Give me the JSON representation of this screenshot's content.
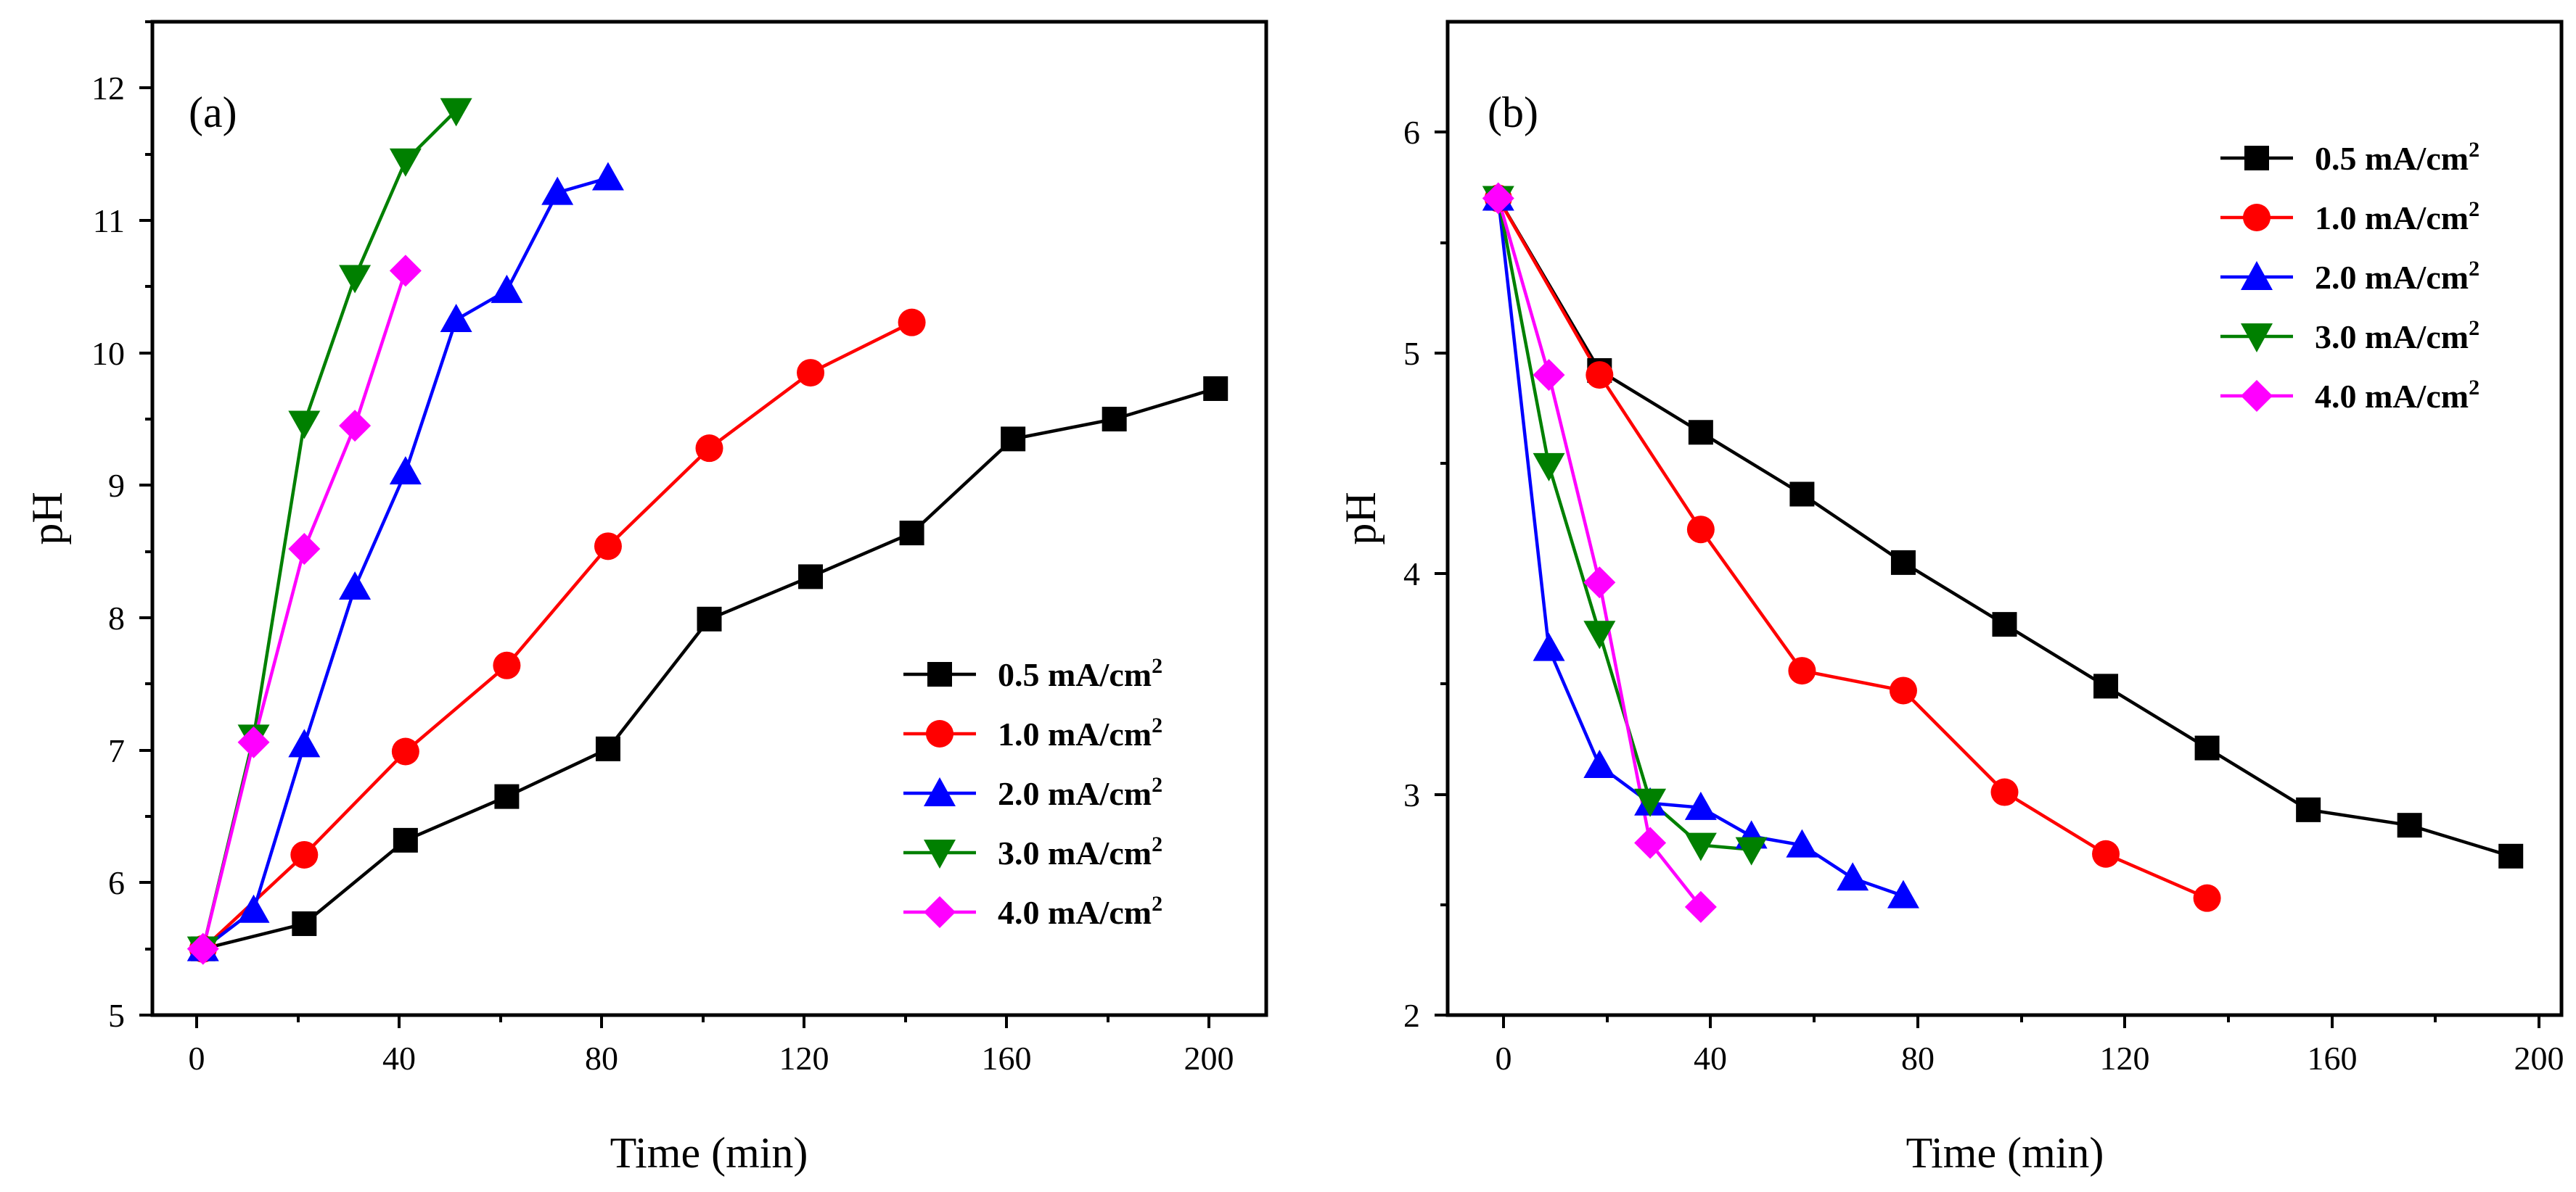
{
  "chart_data": [
    {
      "type": "line",
      "panel_label": "(a)",
      "xlabel": "Time (min)",
      "ylabel": "pH",
      "xlim": [
        -10,
        210
      ],
      "ylim": [
        5,
        12.5
      ],
      "xticks": [
        0,
        40,
        80,
        120,
        160,
        200
      ],
      "xtick_labels": [
        "0",
        "40",
        "80",
        "120",
        "160",
        "200"
      ],
      "yticks": [
        5,
        6,
        7,
        8,
        9,
        10,
        11,
        12
      ],
      "ytick_labels": [
        "5",
        "6",
        "7",
        "8",
        "9",
        "10",
        "11",
        "12"
      ],
      "legend_position": "bottom-right",
      "series": [
        {
          "name": "0.5 mA/cm",
          "sup": "2",
          "color": "#000000",
          "marker": "square",
          "x": [
            0,
            20,
            40,
            60,
            80,
            100,
            120,
            140,
            160,
            180,
            200
          ],
          "y": [
            5.5,
            5.69,
            6.32,
            6.65,
            7.01,
            7.99,
            8.31,
            8.64,
            9.35,
            9.5,
            9.73
          ]
        },
        {
          "name": "1.0 mA/cm",
          "sup": "2",
          "color": "#ff0000",
          "marker": "circle",
          "x": [
            0,
            20,
            40,
            60,
            80,
            100,
            120,
            140
          ],
          "y": [
            5.5,
            6.21,
            6.99,
            7.64,
            8.54,
            9.28,
            9.85,
            10.23
          ]
        },
        {
          "name": "2.0 mA/cm",
          "sup": "2",
          "color": "#0000ff",
          "marker": "triangle-up",
          "x": [
            0,
            10,
            20,
            30,
            40,
            50,
            60,
            70,
            80
          ],
          "y": [
            5.5,
            5.79,
            7.04,
            8.23,
            9.1,
            10.25,
            10.47,
            11.21,
            11.32
          ]
        },
        {
          "name": "3.0 mA/cm",
          "sup": "2",
          "color": "#008000",
          "marker": "triangle-down",
          "x": [
            0,
            10,
            20,
            30,
            40,
            50
          ],
          "y": [
            5.5,
            7.1,
            9.47,
            10.57,
            11.45,
            11.83
          ]
        },
        {
          "name": "4.0 mA/cm",
          "sup": "2",
          "color": "#ff00ff",
          "marker": "diamond",
          "x": [
            0,
            10,
            20,
            30,
            40
          ],
          "y": [
            5.5,
            7.06,
            8.52,
            9.45,
            10.62
          ]
        }
      ]
    },
    {
      "type": "line",
      "panel_label": "(b)",
      "xlabel": "Time (min)",
      "ylabel": "pH",
      "xlim": [
        -10,
        210
      ],
      "ylim": [
        2,
        6.5
      ],
      "xticks": [
        0,
        40,
        80,
        120,
        160,
        200
      ],
      "xtick_labels": [
        "0",
        "40",
        "80",
        "120",
        "160",
        "200"
      ],
      "yticks": [
        2,
        3,
        4,
        5,
        6
      ],
      "ytick_labels": [
        "2",
        "3",
        "4",
        "5",
        "6"
      ],
      "legend_position": "top-right",
      "series": [
        {
          "name": "0.5 mA/cm",
          "sup": "2",
          "color": "#000000",
          "marker": "square",
          "x": [
            0,
            20,
            40,
            60,
            80,
            100,
            120,
            140,
            160,
            180,
            200
          ],
          "y": [
            5.7,
            4.92,
            4.64,
            4.36,
            4.05,
            3.77,
            3.49,
            3.21,
            2.93,
            2.86,
            2.72
          ]
        },
        {
          "name": "1.0 mA/cm",
          "sup": "2",
          "color": "#ff0000",
          "marker": "circle",
          "x": [
            0,
            20,
            40,
            60,
            80,
            100,
            120,
            140
          ],
          "y": [
            5.7,
            4.9,
            4.2,
            3.56,
            3.47,
            3.01,
            2.73,
            2.53
          ]
        },
        {
          "name": "2.0 mA/cm",
          "sup": "2",
          "color": "#0000ff",
          "marker": "triangle-up",
          "x": [
            0,
            10,
            20,
            30,
            40,
            50,
            60,
            70,
            80
          ],
          "y": [
            5.7,
            3.66,
            3.13,
            2.96,
            2.94,
            2.81,
            2.77,
            2.62,
            2.54
          ]
        },
        {
          "name": "3.0 mA/cm",
          "sup": "2",
          "color": "#008000",
          "marker": "triangle-down",
          "x": [
            0,
            10,
            20,
            30,
            40,
            50
          ],
          "y": [
            5.7,
            4.49,
            3.73,
            2.97,
            2.77,
            2.75
          ]
        },
        {
          "name": "4.0 mA/cm",
          "sup": "2",
          "color": "#ff00ff",
          "marker": "diamond",
          "x": [
            0,
            10,
            20,
            30,
            40
          ],
          "y": [
            5.7,
            4.9,
            3.96,
            2.78,
            2.49
          ]
        }
      ]
    }
  ]
}
